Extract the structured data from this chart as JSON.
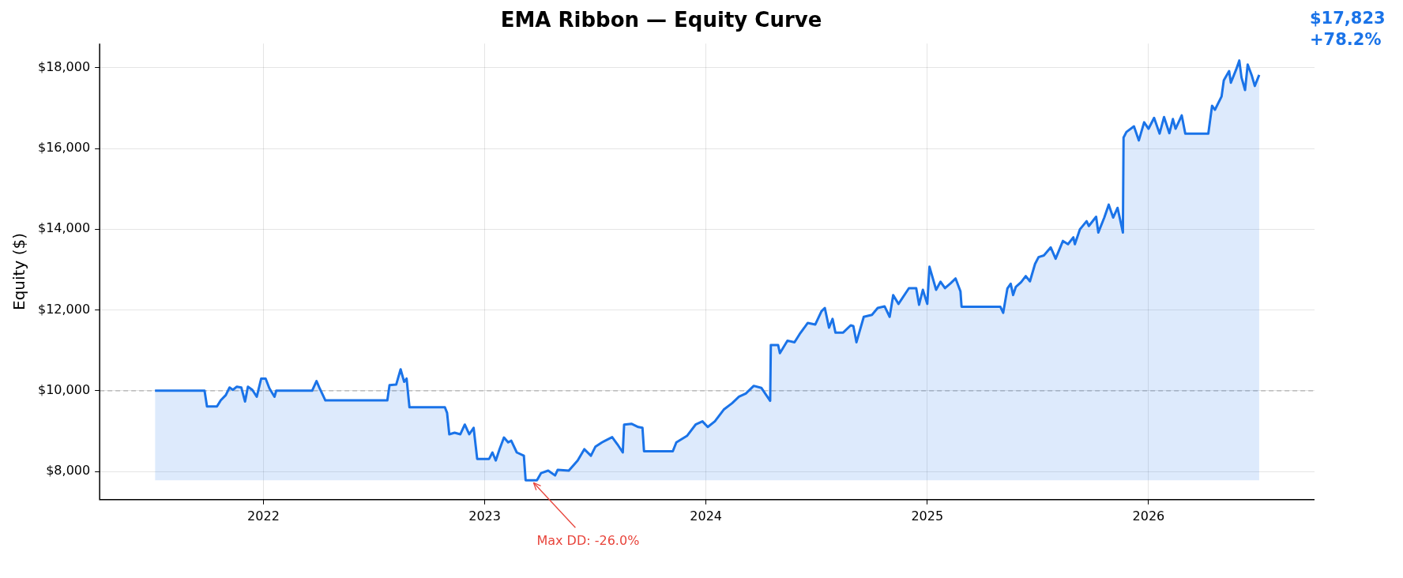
{
  "chart_data": {
    "type": "area",
    "title": "EMA Ribbon — Equity Curve",
    "ylabel": "Equity ($)",
    "x": [
      2021.51,
      2021.734,
      2021.745,
      2021.79,
      2021.807,
      2021.83,
      2021.847,
      2021.862,
      2021.88,
      2021.9,
      2021.917,
      2021.93,
      2021.95,
      2021.97,
      2021.99,
      2022.01,
      2022.027,
      2022.05,
      2022.058,
      2022.22,
      2022.24,
      2022.254,
      2022.28,
      2022.56,
      2022.57,
      2022.6,
      2022.62,
      2022.636,
      2022.647,
      2022.66,
      2022.82,
      2022.83,
      2022.84,
      2022.864,
      2022.89,
      2022.91,
      2022.93,
      2022.95,
      2022.966,
      2023.02,
      2023.035,
      2023.05,
      2023.067,
      2023.087,
      2023.106,
      2023.12,
      2023.145,
      2023.177,
      2023.185,
      2023.236,
      2023.255,
      2023.287,
      2023.318,
      2023.33,
      2023.38,
      2023.42,
      2023.45,
      2023.48,
      2023.5,
      2023.53,
      2023.576,
      2023.6,
      2023.624,
      2023.63,
      2023.663,
      2023.694,
      2023.713,
      2023.72,
      2023.85,
      2023.866,
      2023.914,
      2023.953,
      2023.984,
      2024.008,
      2024.04,
      2024.08,
      2024.118,
      2024.149,
      2024.18,
      2024.216,
      2024.25,
      2024.29,
      2024.293,
      2024.326,
      2024.334,
      2024.368,
      2024.4,
      2024.423,
      2024.46,
      2024.494,
      2024.522,
      2024.537,
      2024.556,
      2024.572,
      2024.585,
      2024.62,
      2024.654,
      2024.666,
      2024.68,
      2024.713,
      2024.75,
      2024.776,
      2024.807,
      2024.83,
      2024.846,
      2024.87,
      2024.917,
      2024.95,
      2024.963,
      2024.98,
      2025.0,
      2025.01,
      2025.04,
      2025.06,
      2025.08,
      2025.105,
      2025.128,
      2025.15,
      2025.155,
      2025.33,
      2025.343,
      2025.362,
      2025.377,
      2025.388,
      2025.4,
      2025.424,
      2025.445,
      2025.464,
      2025.487,
      2025.503,
      2025.527,
      2025.558,
      2025.58,
      2025.613,
      2025.636,
      2025.66,
      2025.667,
      2025.69,
      2025.72,
      2025.73,
      2025.763,
      2025.773,
      2025.8,
      2025.82,
      2025.84,
      2025.86,
      2025.884,
      2025.887,
      2025.9,
      2025.934,
      2025.956,
      2025.98,
      2026.0,
      2026.025,
      2026.05,
      2026.07,
      2026.094,
      2026.11,
      2026.122,
      2026.15,
      2026.166,
      2026.27,
      2026.287,
      2026.3,
      2026.33,
      2026.34,
      2026.364,
      2026.372,
      2026.396,
      2026.41,
      2026.42,
      2026.436,
      2026.448,
      2026.467,
      2026.48,
      2026.5
    ],
    "series": [
      {
        "color": "#1a73e8",
        "values": [
          10000,
          10000,
          9610,
          9610,
          9760,
          9890,
          10080,
          10020,
          10100,
          10080,
          9730,
          10100,
          10020,
          9850,
          10300,
          10300,
          10060,
          9850,
          10000,
          10000,
          10240,
          10060,
          9760,
          9760,
          10140,
          10150,
          10530,
          10220,
          10300,
          9590,
          9590,
          9450,
          8920,
          8960,
          8920,
          9160,
          8920,
          9080,
          8310,
          8310,
          8470,
          8270,
          8550,
          8840,
          8720,
          8760,
          8470,
          8390,
          7780,
          7780,
          7960,
          8020,
          7900,
          8040,
          8020,
          8270,
          8550,
          8390,
          8610,
          8720,
          8850,
          8670,
          8470,
          9160,
          9180,
          9100,
          9080,
          8500,
          8500,
          8720,
          8880,
          9160,
          9240,
          9100,
          9240,
          9530,
          9690,
          9850,
          9930,
          10120,
          10070,
          9750,
          11130,
          11130,
          10930,
          11240,
          11200,
          11400,
          11680,
          11640,
          11970,
          12050,
          11560,
          11780,
          11440,
          11440,
          11620,
          11600,
          11200,
          11830,
          11880,
          12050,
          12090,
          11830,
          12370,
          12150,
          12540,
          12540,
          12130,
          12500,
          12150,
          13070,
          12500,
          12700,
          12540,
          12660,
          12780,
          12460,
          12080,
          12080,
          11930,
          12530,
          12650,
          12370,
          12570,
          12690,
          12840,
          12710,
          13140,
          13310,
          13350,
          13550,
          13270,
          13710,
          13630,
          13800,
          13630,
          14000,
          14200,
          14080,
          14310,
          13920,
          14290,
          14610,
          14290,
          14530,
          13920,
          16270,
          16410,
          16550,
          16200,
          16650,
          16490,
          16760,
          16370,
          16780,
          16380,
          16730,
          16490,
          16820,
          16370,
          16370,
          17060,
          16960,
          17290,
          17690,
          17920,
          17630,
          17960,
          18180,
          17760,
          17450,
          18080,
          17800,
          17550,
          17823
        ]
      }
    ],
    "xlim": [
      2021.26,
      2026.75
    ],
    "xticks": [
      2022,
      2023,
      2024,
      2025,
      2026
    ],
    "ylim": [
      7300,
      18600
    ],
    "yticks": [
      {
        "value": 8000,
        "label": "$8,000"
      },
      {
        "value": 10000,
        "label": "$10,000"
      },
      {
        "value": 12000,
        "label": "$12,000"
      },
      {
        "value": 14000,
        "label": "$14,000"
      },
      {
        "value": 16000,
        "label": "$16,000"
      },
      {
        "value": 18000,
        "label": "$18,000"
      }
    ],
    "grid": true,
    "legend": false,
    "ref_lines": [
      {
        "axis": "y",
        "value": 10000,
        "color": "#b0b0b0",
        "line_style": "dashed"
      }
    ],
    "annotations": [
      {
        "text": "Max DD: -26.0%",
        "x": 2023.21,
        "y": 7780
      },
      "$17,823\n+78.2%"
    ]
  }
}
